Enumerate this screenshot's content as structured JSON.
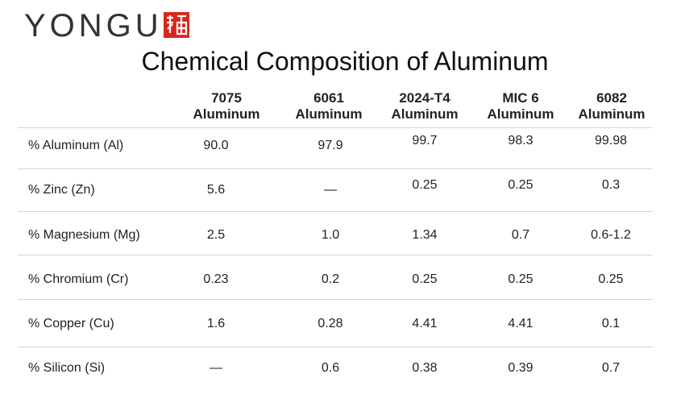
{
  "header": {
    "logo": "YONGU",
    "title": "Chemical Composition of Aluminum"
  },
  "table": {
    "columns": [
      [
        "7075",
        "Aluminum"
      ],
      [
        "6061",
        "Aluminum"
      ],
      [
        "2024-T4",
        "Aluminum"
      ],
      [
        "MIC 6",
        "Aluminum"
      ],
      [
        "6082",
        "Aluminum"
      ]
    ],
    "rows": [
      [
        "% Aluminum (Al)",
        "90.0",
        "97.9",
        "99.7",
        "98.3",
        "99.98"
      ],
      [
        "% Zinc (Zn)",
        "5.6",
        "—",
        "0.25",
        "0.25",
        "0.3"
      ],
      [
        "% Magnesium (Mg)",
        "2.5",
        "1.0",
        "1.34",
        "0.7",
        "0.6-1.2"
      ],
      [
        "% Chromium (Cr)",
        "0.23",
        "0.2",
        "0.25",
        "0.25",
        "0.25"
      ],
      [
        "% Copper (Cu)",
        "1.6",
        "0.28",
        "4.41",
        "4.41",
        "0.1"
      ],
      [
        "% Silicon (Si)",
        "—",
        "0.6",
        "0.38",
        "0.39",
        "0.7"
      ]
    ]
  }
}
